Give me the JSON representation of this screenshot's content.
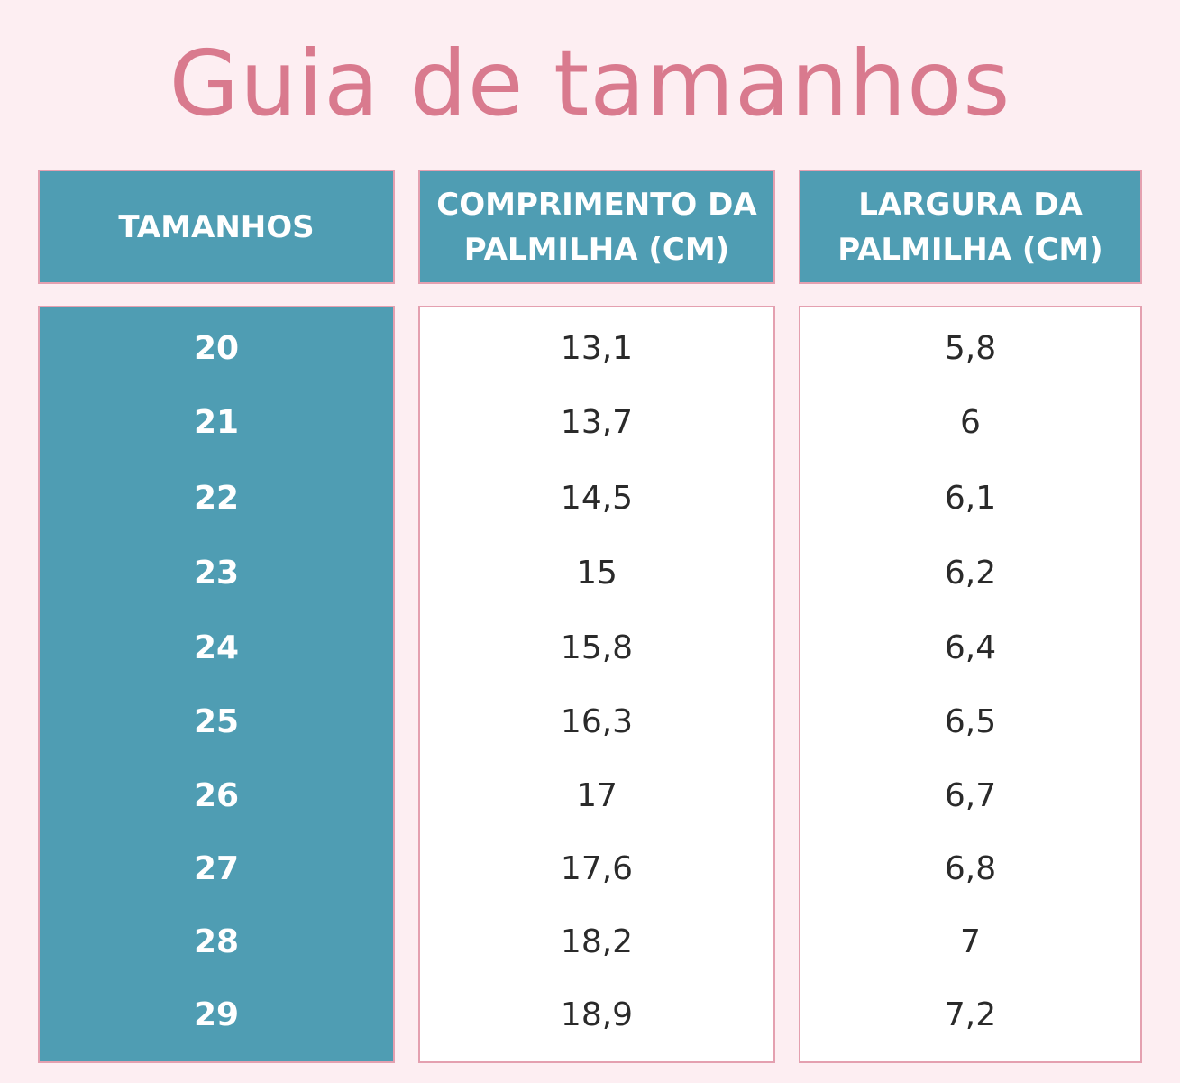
{
  "title": "Guia de tamanhos",
  "headers": [
    "TAMANHOS",
    "COMPRIMENTO DA\nPALMILHA (CM)",
    "LARGURA DA\nPALMILHA (CM)"
  ],
  "rows": [
    {
      "size": "20",
      "length": "13,1",
      "width": "5,8"
    },
    {
      "size": "21",
      "length": "13,7",
      "width": "6"
    },
    {
      "size": "22",
      "length": "14,5",
      "width": "6,1"
    },
    {
      "size": "23",
      "length": "15",
      "width": "6,2"
    },
    {
      "size": "24",
      "length": "15,8",
      "width": "6,4"
    },
    {
      "size": "25",
      "length": "16,3",
      "width": "6,5"
    },
    {
      "size": "26",
      "length": "17",
      "width": "6,7"
    },
    {
      "size": "27",
      "length": "17,6",
      "width": "6,8"
    },
    {
      "size": "28",
      "length": "18,2",
      "width": "7"
    },
    {
      "size": "29",
      "length": "18,9",
      "width": "7,2"
    }
  ],
  "colors": {
    "background": "#fdeef2",
    "title": "#d97a8e",
    "header_fill": "#4f9db3",
    "border": "#e4a0b0",
    "value_fill": "#ffffff"
  }
}
